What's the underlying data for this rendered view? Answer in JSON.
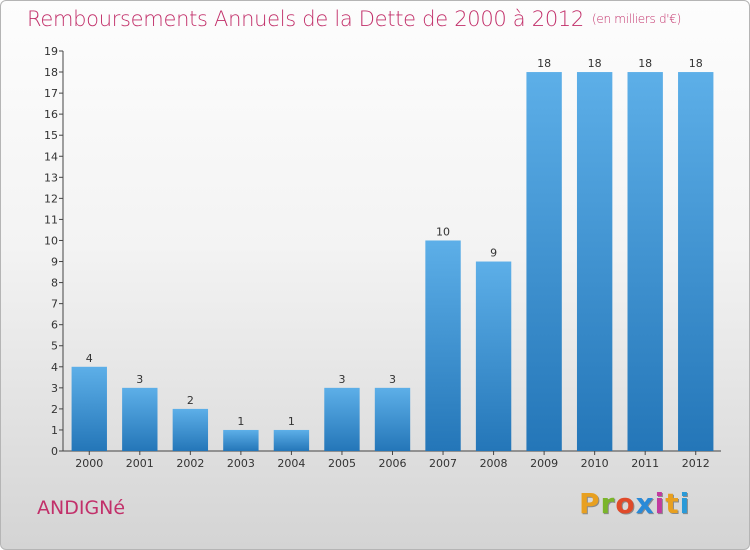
{
  "page": {
    "title": "Remboursements Annuels de la Dette de 2000 à 2012",
    "unit": "(en milliers d'€)",
    "place": "ANDIGNé",
    "logo_text": "Proxiti",
    "logo_colors": [
      "#e8a020",
      "#7bb52a",
      "#e04a2a",
      "#2a8ad8",
      "#c23aa0",
      "#e8a020",
      "#2a9ad8"
    ]
  },
  "colors": {
    "title": "#c2306a",
    "bar_light": "#5dafe8",
    "bar_dark": "#2476b8"
  },
  "chart_data": {
    "type": "bar",
    "title": "Remboursements Annuels de la Dette de 2000 à 2012",
    "categories": [
      "2000",
      "2001",
      "2002",
      "2003",
      "2004",
      "2005",
      "2006",
      "2007",
      "2008",
      "2009",
      "2010",
      "2011",
      "2012"
    ],
    "values": [
      4,
      3,
      2,
      1,
      1,
      3,
      3,
      10,
      9,
      18,
      18,
      18,
      18
    ],
    "ylim": [
      0,
      19
    ],
    "yticks": [
      0,
      1,
      2,
      3,
      4,
      5,
      6,
      7,
      8,
      9,
      10,
      11,
      12,
      13,
      14,
      15,
      16,
      17,
      18,
      19
    ],
    "grid": false,
    "data_labels": true
  }
}
